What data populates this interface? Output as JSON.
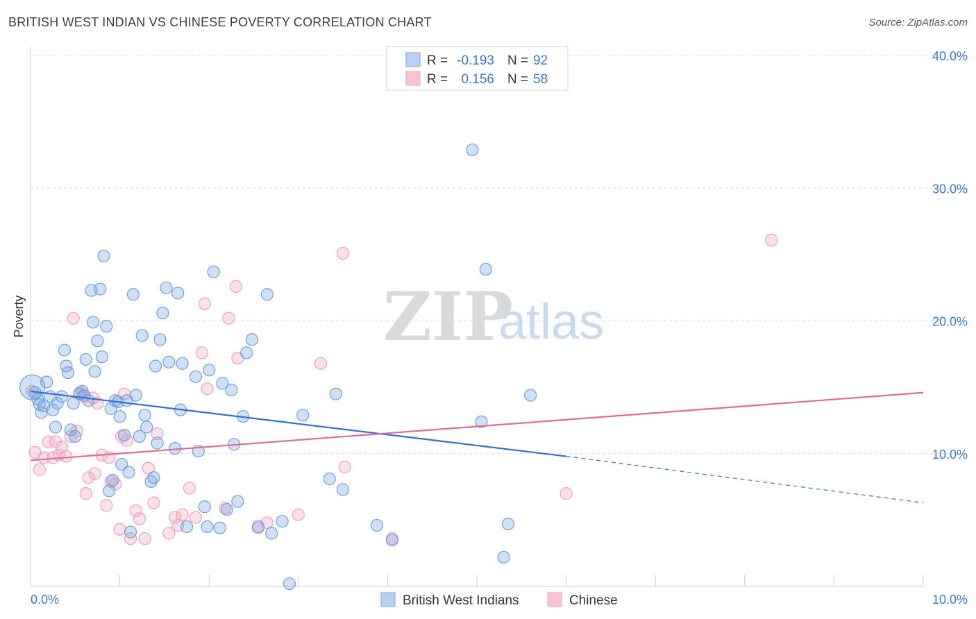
{
  "header": {
    "title": "BRITISH WEST INDIAN VS CHINESE POVERTY CORRELATION CHART",
    "source": "Source: ZipAtlas.com"
  },
  "watermark": {
    "zip": "ZIP",
    "atlas": "atlas"
  },
  "legend": {
    "rows": [
      {
        "r_label": "R =",
        "r_value": "-0.193",
        "n_label": "N =",
        "n_value": "92"
      },
      {
        "r_label": "R =",
        "r_value": "0.156",
        "n_label": "N =",
        "n_value": "58"
      }
    ]
  },
  "bottom_legend": [
    "British West Indians",
    "Chinese"
  ],
  "chart_data": {
    "type": "scatter",
    "title": "BRITISH WEST INDIAN VS CHINESE POVERTY CORRELATION CHART",
    "xlabel": "",
    "ylabel": "Poverty",
    "xlim": [
      0,
      10
    ],
    "ylim": [
      0,
      40
    ],
    "x_tick_labels": [
      "0.0%",
      "10.0%"
    ],
    "y_ticks": [
      10,
      20,
      30,
      40
    ],
    "y_tick_labels": [
      "10.0%",
      "20.0%",
      "30.0%",
      "40.0%"
    ],
    "grid": true,
    "legend_placement": "top-center",
    "colors": {
      "blue": "#6fa3e0",
      "blue_line": "#2f6fcf",
      "pink": "#f2a4bf",
      "pink_line": "#e06a94"
    },
    "series": [
      {
        "name": "British West Indians",
        "r": -0.193,
        "n": 92,
        "trend": {
          "x0": 0.0,
          "y0": 14.7,
          "x1": 6.0,
          "y1": 9.8,
          "dash_to_x": 10.0,
          "dash_to_y": 6.3
        },
        "points": [
          [
            0.02,
            15.0
          ],
          [
            0.05,
            14.6
          ],
          [
            0.08,
            14.1
          ],
          [
            0.1,
            13.7
          ],
          [
            0.12,
            13.1
          ],
          [
            0.15,
            13.6
          ],
          [
            0.18,
            15.4
          ],
          [
            0.22,
            14.3
          ],
          [
            0.25,
            13.3
          ],
          [
            0.28,
            12.0
          ],
          [
            0.3,
            13.8
          ],
          [
            0.35,
            14.3
          ],
          [
            0.38,
            17.8
          ],
          [
            0.4,
            16.6
          ],
          [
            0.42,
            16.1
          ],
          [
            0.45,
            11.8
          ],
          [
            0.48,
            13.8
          ],
          [
            0.5,
            11.3
          ],
          [
            0.55,
            14.5
          ],
          [
            0.58,
            14.7
          ],
          [
            0.6,
            14.4
          ],
          [
            0.65,
            14.0
          ],
          [
            0.62,
            17.1
          ],
          [
            0.68,
            22.3
          ],
          [
            0.7,
            19.9
          ],
          [
            0.72,
            16.2
          ],
          [
            0.75,
            18.5
          ],
          [
            0.78,
            22.4
          ],
          [
            0.8,
            17.3
          ],
          [
            0.82,
            24.9
          ],
          [
            0.85,
            19.6
          ],
          [
            0.88,
            7.2
          ],
          [
            0.9,
            13.4
          ],
          [
            0.92,
            8.0
          ],
          [
            0.95,
            14.0
          ],
          [
            0.98,
            13.9
          ],
          [
            1.0,
            12.8
          ],
          [
            1.02,
            9.2
          ],
          [
            1.05,
            11.4
          ],
          [
            1.08,
            14.0
          ],
          [
            1.1,
            8.6
          ],
          [
            1.12,
            4.1
          ],
          [
            1.15,
            22.0
          ],
          [
            1.18,
            14.4
          ],
          [
            1.22,
            11.3
          ],
          [
            1.25,
            18.9
          ],
          [
            1.28,
            12.9
          ],
          [
            1.3,
            12.0
          ],
          [
            1.35,
            7.9
          ],
          [
            1.38,
            8.2
          ],
          [
            1.4,
            16.6
          ],
          [
            1.42,
            10.8
          ],
          [
            1.45,
            18.6
          ],
          [
            1.48,
            20.6
          ],
          [
            1.52,
            22.5
          ],
          [
            1.55,
            16.9
          ],
          [
            1.62,
            10.4
          ],
          [
            1.65,
            22.1
          ],
          [
            1.68,
            13.3
          ],
          [
            1.7,
            16.8
          ],
          [
            1.75,
            4.5
          ],
          [
            1.85,
            15.8
          ],
          [
            1.88,
            10.2
          ],
          [
            1.95,
            6.0
          ],
          [
            1.98,
            4.5
          ],
          [
            2.0,
            16.3
          ],
          [
            2.05,
            23.7
          ],
          [
            2.12,
            4.4
          ],
          [
            2.15,
            15.3
          ],
          [
            2.2,
            5.8
          ],
          [
            2.25,
            14.8
          ],
          [
            2.28,
            10.7
          ],
          [
            2.32,
            6.4
          ],
          [
            2.38,
            12.8
          ],
          [
            2.42,
            17.6
          ],
          [
            2.48,
            18.6
          ],
          [
            2.55,
            4.5
          ],
          [
            2.65,
            22.0
          ],
          [
            2.7,
            4.0
          ],
          [
            2.82,
            4.9
          ],
          [
            2.9,
            0.2
          ],
          [
            3.05,
            12.9
          ],
          [
            3.35,
            8.1
          ],
          [
            3.42,
            14.5
          ],
          [
            3.5,
            7.3
          ],
          [
            3.88,
            4.6
          ],
          [
            4.05,
            3.5
          ],
          [
            4.95,
            32.9
          ],
          [
            5.05,
            12.4
          ],
          [
            5.1,
            23.9
          ],
          [
            5.3,
            2.2
          ],
          [
            5.35,
            4.7
          ],
          [
            5.6,
            14.4
          ]
        ]
      },
      {
        "name": "Chinese",
        "r": 0.156,
        "n": 58,
        "trend": {
          "x0": 0.0,
          "y0": 9.5,
          "x1": 10.0,
          "y1": 14.6
        },
        "points": [
          [
            0.02,
            14.7
          ],
          [
            0.05,
            10.1
          ],
          [
            0.1,
            8.8
          ],
          [
            0.15,
            9.7
          ],
          [
            0.2,
            10.9
          ],
          [
            0.25,
            9.7
          ],
          [
            0.28,
            10.9
          ],
          [
            0.32,
            9.9
          ],
          [
            0.35,
            10.5
          ],
          [
            0.4,
            9.8
          ],
          [
            0.45,
            11.3
          ],
          [
            0.48,
            20.2
          ],
          [
            0.52,
            11.7
          ],
          [
            0.55,
            14.6
          ],
          [
            0.6,
            14.3
          ],
          [
            0.62,
            7.0
          ],
          [
            0.65,
            8.2
          ],
          [
            0.7,
            14.2
          ],
          [
            0.72,
            8.5
          ],
          [
            0.75,
            13.8
          ],
          [
            0.8,
            9.9
          ],
          [
            0.85,
            6.1
          ],
          [
            0.88,
            9.7
          ],
          [
            0.9,
            7.9
          ],
          [
            0.95,
            7.7
          ],
          [
            1.0,
            4.3
          ],
          [
            1.02,
            11.3
          ],
          [
            1.05,
            14.5
          ],
          [
            1.08,
            11.0
          ],
          [
            1.12,
            3.6
          ],
          [
            1.18,
            5.7
          ],
          [
            1.22,
            5.1
          ],
          [
            1.28,
            3.6
          ],
          [
            1.32,
            8.9
          ],
          [
            1.38,
            6.3
          ],
          [
            1.42,
            11.5
          ],
          [
            1.55,
            4.0
          ],
          [
            1.62,
            5.2
          ],
          [
            1.65,
            4.6
          ],
          [
            1.7,
            5.4
          ],
          [
            1.78,
            7.4
          ],
          [
            1.85,
            5.2
          ],
          [
            1.92,
            17.6
          ],
          [
            1.95,
            21.3
          ],
          [
            1.98,
            14.9
          ],
          [
            2.18,
            5.9
          ],
          [
            2.22,
            20.2
          ],
          [
            2.3,
            22.6
          ],
          [
            2.32,
            17.2
          ],
          [
            2.55,
            4.4
          ],
          [
            2.65,
            4.8
          ],
          [
            3.0,
            5.4
          ],
          [
            3.25,
            16.8
          ],
          [
            3.5,
            25.1
          ],
          [
            3.52,
            9.0
          ],
          [
            4.05,
            3.6
          ],
          [
            6.0,
            7.0
          ],
          [
            8.3,
            26.1
          ]
        ]
      }
    ]
  }
}
